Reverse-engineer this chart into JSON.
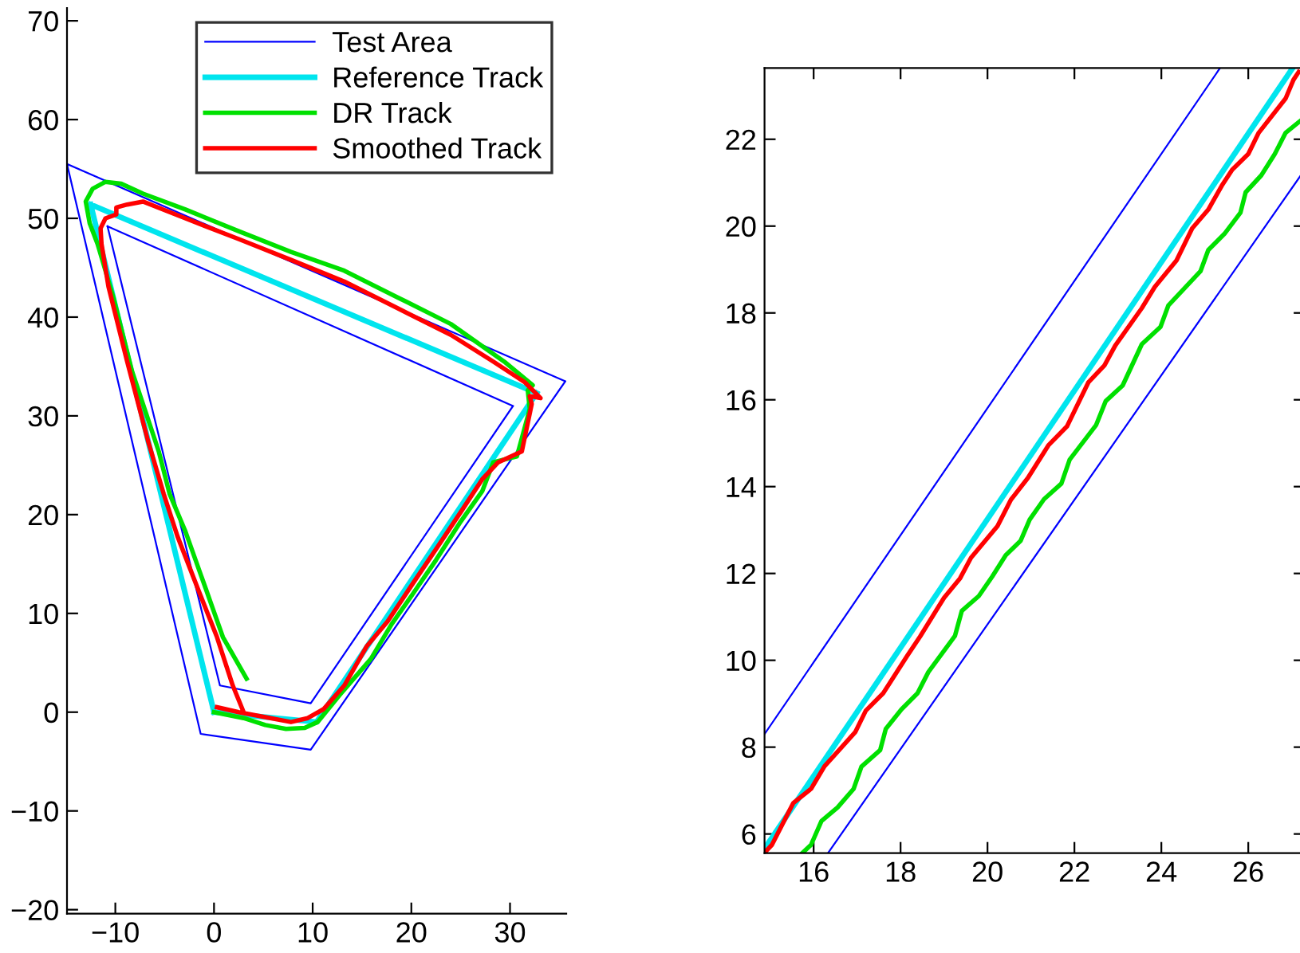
{
  "chart_data": [
    {
      "type": "line",
      "xlim": [
        -14.9,
        35.7
      ],
      "ylim": [
        -20.4,
        71.3
      ],
      "xticks": [
        -10,
        0,
        10,
        20,
        30
      ],
      "yticks": [
        -20,
        -10,
        0,
        10,
        20,
        30,
        40,
        50,
        60,
        70
      ],
      "grid": false,
      "legend": "top right",
      "series": [
        {
          "name": "Test Area",
          "color": "#0000ff",
          "x": [
            -14.9,
            35.6,
            null,
            35.6,
            9.8,
            -1.35,
            -14.9,
            null,
            -10.8,
            30.3,
            null,
            30.3,
            9.8,
            0.6,
            -10.8
          ],
          "values": [
            55.5,
            33.5,
            null,
            33.5,
            -3.8,
            -2.2,
            55.5,
            null,
            49.2,
            31.0,
            null,
            31.0,
            0.9,
            2.7,
            49.2
          ]
        },
        {
          "name": "Reference Track",
          "color": "#00e5ee",
          "x": [
            0,
            10.4,
            32.7,
            null,
            32.7,
            -12.5,
            null,
            -12.5,
            0
          ],
          "values": [
            0,
            -1.0,
            32.3,
            null,
            32.3,
            51.4,
            null,
            51.4,
            0
          ]
        },
        {
          "name": "DR Track",
          "color": "#00e000",
          "x": [
            0,
            3.0,
            5.2,
            7.3,
            9.2,
            10.5,
            12.7,
            15.9,
            18,
            20.1,
            22.5,
            25,
            27.2,
            28.3,
            30.7,
            32.0,
            31.8,
            32.3,
            29.4,
            24.0,
            18.6,
            13.2,
            7.8,
            2.5,
            -2.9,
            -7.2,
            -9.4,
            -11.0,
            -12.3,
            -13.0,
            -12.6,
            -11.8,
            -10.2,
            -8.3,
            -5.6,
            -4.5,
            -2.9,
            -0.8,
            0.9,
            3.3
          ],
          "values": [
            0,
            -0.6,
            -1.3,
            -1.7,
            -1.6,
            -1.0,
            1.7,
            5.4,
            8.9,
            11.9,
            15.4,
            19.3,
            22.4,
            25.3,
            25.9,
            30.7,
            32.6,
            33.1,
            35.5,
            39.3,
            42.0,
            44.7,
            46.6,
            48.7,
            50.9,
            52.5,
            53.5,
            53.7,
            53.0,
            51.7,
            49.5,
            47.4,
            42.0,
            34.5,
            26.4,
            22.1,
            18.3,
            12.4,
            7.6,
            3.4
          ]
        },
        {
          "name": "Smoothed Track",
          "color": "#ff0000",
          "x": [
            0.3,
            2.5,
            5.2,
            7.8,
            9.5,
            11.1,
            13.2,
            15.5,
            17.6,
            20.2,
            22.7,
            25.1,
            27.2,
            28.8,
            31.2,
            32.2,
            32.0,
            33.1,
            31.5,
            28.3,
            24.0,
            18.6,
            13.2,
            7.8,
            2.5,
            -2.9,
            -7.2,
            -8.8,
            -9.9,
            -9.9,
            -11.0,
            -11.5,
            -11.4,
            -10.7,
            -8.8,
            -6.7,
            -5.1,
            -3.7,
            -1.6,
            0.3,
            1.9,
            3.0
          ],
          "values": [
            0.5,
            0,
            -0.5,
            -1.0,
            -0.6,
            0.3,
            2.7,
            6.7,
            9.2,
            13.1,
            16.8,
            20.4,
            23.6,
            25.3,
            26.4,
            31.2,
            32.0,
            31.8,
            33.4,
            35.5,
            38.2,
            40.9,
            43.6,
            45.8,
            47.9,
            50.0,
            51.7,
            51.4,
            51.1,
            50.4,
            50.0,
            49.0,
            47.4,
            43.1,
            35.5,
            27.5,
            22.1,
            17.8,
            12.4,
            7.6,
            2.7,
            0
          ]
        }
      ]
    },
    {
      "type": "line",
      "xlim": [
        14.87,
        27.3
      ],
      "ylim": [
        5.56,
        23.64
      ],
      "xticks": [
        16,
        18,
        20,
        22,
        24,
        26
      ],
      "yticks": [
        6,
        8,
        10,
        12,
        14,
        16,
        18,
        20,
        22
      ],
      "grid": false,
      "legend": false,
      "series": [
        {
          "color": "#0000ff",
          "x": [
            14.87,
            25.35,
            null,
            16.33,
            27.23
          ],
          "values": [
            8.3,
            23.64,
            null,
            5.56,
            21.2
          ]
        },
        {
          "color": "#00e5ee",
          "x": [
            14.87,
            27.02
          ],
          "values": [
            5.66,
            23.64
          ]
        },
        {
          "color": "#00e000",
          "x": [
            15.75,
            15.94,
            16.18,
            16.55,
            16.92,
            17.1,
            17.53,
            17.66,
            18.02,
            18.39,
            18.64,
            19.25,
            19.41,
            19.8,
            20.11,
            20.42,
            20.76,
            20.97,
            21.3,
            21.7,
            21.89,
            22.5,
            22.72,
            23.11,
            23.55,
            23.98,
            24.16,
            24.9,
            25.08,
            25.45,
            25.82,
            25.94,
            26.3,
            26.61,
            26.86,
            27.23
          ],
          "values": [
            5.57,
            5.75,
            6.3,
            6.61,
            7.04,
            7.55,
            7.93,
            8.42,
            8.87,
            9.24,
            9.73,
            10.56,
            11.14,
            11.48,
            11.93,
            12.42,
            12.75,
            13.24,
            13.71,
            14.07,
            14.62,
            15.42,
            15.97,
            16.33,
            17.28,
            17.68,
            18.17,
            18.96,
            19.45,
            19.82,
            20.31,
            20.78,
            21.17,
            21.66,
            22.15,
            22.45
          ]
        },
        {
          "color": "#ff0000",
          "x": [
            14.87,
            15.04,
            15.53,
            15.94,
            16.25,
            16.96,
            17.2,
            17.6,
            18.15,
            18.45,
            19.0,
            19.37,
            19.62,
            20.23,
            20.54,
            20.93,
            21.4,
            21.83,
            22.32,
            22.69,
            22.94,
            23.55,
            23.85,
            24.35,
            24.71,
            25.08,
            25.39,
            25.63,
            26.0,
            26.24,
            26.86,
            27.04,
            27.16
          ],
          "values": [
            5.57,
            5.75,
            6.71,
            7.04,
            7.56,
            8.35,
            8.84,
            9.24,
            10.1,
            10.55,
            11.44,
            11.89,
            12.36,
            13.09,
            13.7,
            14.2,
            14.95,
            15.39,
            16.4,
            16.79,
            17.25,
            18.11,
            18.6,
            19.21,
            19.95,
            20.38,
            20.93,
            21.3,
            21.66,
            22.15,
            22.94,
            23.37,
            23.55
          ]
        }
      ]
    }
  ]
}
